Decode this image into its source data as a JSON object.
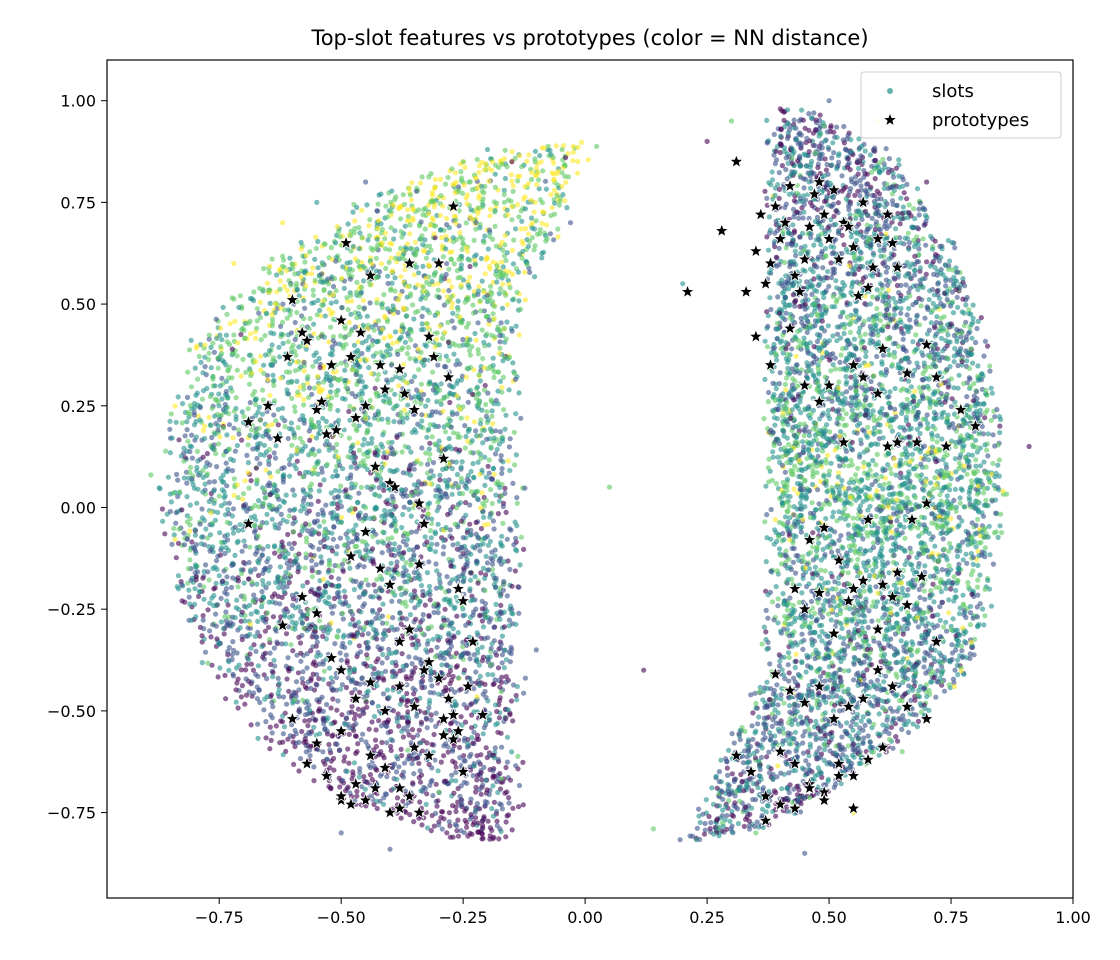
{
  "chart_data": {
    "type": "scatter",
    "title": "Top-slot features vs prototypes (color = NN distance)",
    "xlabel": "",
    "ylabel": "",
    "xlim": [
      -0.98,
      1.0
    ],
    "ylim": [
      -0.96,
      1.1
    ],
    "x_ticks": [
      -0.75,
      -0.5,
      -0.25,
      0.0,
      0.25,
      0.5,
      0.75,
      1.0
    ],
    "x_tick_labels": [
      "−0.75",
      "−0.50",
      "−0.25",
      "0.00",
      "0.25",
      "0.50",
      "0.75",
      "1.00"
    ],
    "y_ticks": [
      -0.75,
      -0.5,
      -0.25,
      0.0,
      0.25,
      0.5,
      0.75,
      1.0
    ],
    "y_tick_labels": [
      "−0.75",
      "−0.50",
      "−0.25",
      "0.00",
      "0.25",
      "0.50",
      "0.75",
      "1.00"
    ],
    "grid": false,
    "legend_position": "top-right",
    "colormap": [
      "#440154",
      "#3b528b",
      "#21918c",
      "#5ec962",
      "#fde725"
    ],
    "series": [
      {
        "name": "slots",
        "marker": "circle",
        "note_count_approx": 12000,
        "clusters": [
          {
            "center_x": -0.5,
            "center_y": 0.0,
            "x_range": [
              -0.9,
              -0.05
            ],
            "y_range": [
              -0.85,
              0.9
            ]
          },
          {
            "center_x": 0.55,
            "center_y": 0.05,
            "x_range": [
              0.15,
              0.9
            ],
            "y_range": [
              -0.85,
              1.0
            ]
          }
        ],
        "x": [
          -0.89,
          -0.85,
          -0.78,
          -0.72,
          -0.68,
          -0.62,
          -0.55,
          -0.5,
          -0.45,
          -0.4,
          -0.35,
          -0.3,
          -0.25,
          -0.2,
          -0.15,
          -0.1,
          -0.04,
          -0.03,
          0.05,
          0.12,
          0.14,
          0.2,
          0.25,
          0.28,
          0.3,
          0.35,
          0.4,
          0.45,
          0.5,
          0.55,
          0.6,
          0.65,
          0.7,
          0.75,
          0.8,
          0.85,
          0.91
        ],
        "y": [
          0.08,
          -0.01,
          0.2,
          0.6,
          -0.4,
          0.7,
          0.75,
          -0.8,
          0.8,
          -0.84,
          0.6,
          -0.7,
          0.85,
          0.88,
          0.85,
          -0.35,
          0.86,
          0.7,
          0.05,
          -0.4,
          -0.79,
          0.55,
          0.9,
          -0.7,
          0.95,
          -0.8,
          0.98,
          -0.85,
          1.0,
          -0.75,
          0.95,
          -0.6,
          0.8,
          -0.3,
          0.25,
          0.2,
          0.15
        ]
      },
      {
        "name": "prototypes",
        "marker": "star",
        "color": "#000000",
        "x": [
          -0.69,
          -0.65,
          -0.63,
          -0.61,
          -0.6,
          -0.58,
          -0.57,
          -0.55,
          -0.54,
          -0.53,
          -0.52,
          -0.51,
          -0.5,
          -0.49,
          -0.48,
          -0.47,
          -0.46,
          -0.45,
          -0.44,
          -0.43,
          -0.42,
          -0.41,
          -0.4,
          -0.39,
          -0.38,
          -0.37,
          -0.36,
          -0.35,
          -0.34,
          -0.33,
          -0.32,
          -0.31,
          -0.3,
          -0.29,
          -0.28,
          -0.27,
          -0.26,
          -0.25,
          -0.23,
          -0.21,
          -0.69,
          -0.62,
          -0.58,
          -0.55,
          -0.52,
          -0.5,
          -0.48,
          -0.45,
          -0.42,
          -0.4,
          -0.38,
          -0.36,
          -0.34,
          -0.32,
          -0.3,
          -0.28,
          -0.26,
          -0.24,
          -0.6,
          -0.55,
          -0.5,
          -0.47,
          -0.44,
          -0.41,
          -0.38,
          -0.35,
          -0.33,
          -0.29,
          -0.27,
          -0.25,
          -0.57,
          -0.53,
          -0.5,
          -0.47,
          -0.44,
          -0.41,
          -0.38,
          -0.35,
          -0.32,
          -0.29,
          -0.27,
          -0.5,
          -0.48,
          -0.45,
          -0.43,
          -0.4,
          -0.38,
          -0.36,
          -0.34,
          0.21,
          0.28,
          0.31,
          0.33,
          0.35,
          0.36,
          0.37,
          0.38,
          0.39,
          0.4,
          0.41,
          0.42,
          0.43,
          0.44,
          0.45,
          0.46,
          0.47,
          0.48,
          0.49,
          0.5,
          0.51,
          0.52,
          0.53,
          0.54,
          0.55,
          0.56,
          0.57,
          0.58,
          0.59,
          0.6,
          0.61,
          0.62,
          0.63,
          0.64,
          0.35,
          0.38,
          0.42,
          0.45,
          0.48,
          0.5,
          0.53,
          0.55,
          0.57,
          0.6,
          0.62,
          0.64,
          0.66,
          0.68,
          0.7,
          0.72,
          0.74,
          0.77,
          0.8,
          0.43,
          0.46,
          0.49,
          0.52,
          0.55,
          0.58,
          0.61,
          0.64,
          0.67,
          0.7,
          0.45,
          0.48,
          0.51,
          0.54,
          0.57,
          0.6,
          0.63,
          0.66,
          0.69,
          0.72,
          0.39,
          0.42,
          0.45,
          0.48,
          0.51,
          0.54,
          0.57,
          0.6,
          0.63,
          0.66,
          0.7,
          0.31,
          0.34,
          0.37,
          0.4,
          0.43,
          0.46,
          0.49,
          0.52,
          0.55,
          0.58,
          0.61,
          0.37,
          0.4,
          0.43,
          0.46,
          0.49,
          0.52,
          0.55,
          0.58
        ],
        "y": [
          0.21,
          0.25,
          0.17,
          0.37,
          0.51,
          0.43,
          0.41,
          0.24,
          0.26,
          0.18,
          0.35,
          0.19,
          0.46,
          0.65,
          0.37,
          0.22,
          0.43,
          0.25,
          0.57,
          0.1,
          0.35,
          0.29,
          0.06,
          0.05,
          0.34,
          0.28,
          0.6,
          0.24,
          0.01,
          -0.04,
          0.42,
          0.37,
          0.6,
          0.12,
          0.32,
          0.74,
          -0.2,
          -0.23,
          -0.33,
          -0.51,
          -0.04,
          -0.29,
          -0.22,
          -0.26,
          -0.37,
          -0.4,
          -0.12,
          -0.06,
          -0.15,
          -0.19,
          -0.33,
          -0.3,
          -0.14,
          -0.38,
          -0.42,
          -0.47,
          -0.55,
          -0.44,
          -0.52,
          -0.58,
          -0.55,
          -0.47,
          -0.43,
          -0.5,
          -0.44,
          -0.49,
          -0.4,
          -0.52,
          -0.51,
          -0.65,
          -0.63,
          -0.66,
          -0.72,
          -0.68,
          -0.61,
          -0.64,
          -0.69,
          -0.59,
          -0.61,
          -0.56,
          -0.57,
          -0.71,
          -0.73,
          -0.72,
          -0.69,
          -0.75,
          -0.74,
          -0.71,
          -0.75,
          0.53,
          0.68,
          0.85,
          0.53,
          0.63,
          0.72,
          0.55,
          0.6,
          0.74,
          0.66,
          0.7,
          0.79,
          0.57,
          0.53,
          0.61,
          0.69,
          0.77,
          0.8,
          0.72,
          0.66,
          0.78,
          0.61,
          0.7,
          0.69,
          0.64,
          0.52,
          0.75,
          0.54,
          0.59,
          0.66,
          0.39,
          0.72,
          0.65,
          0.59,
          0.42,
          0.35,
          0.44,
          0.3,
          0.26,
          0.3,
          0.16,
          0.35,
          0.32,
          0.28,
          0.15,
          0.16,
          0.33,
          0.16,
          0.4,
          0.32,
          0.15,
          0.24,
          0.2,
          -0.2,
          -0.08,
          -0.05,
          -0.13,
          -0.2,
          -0.03,
          -0.19,
          -0.16,
          -0.03,
          0.01,
          -0.25,
          -0.21,
          -0.31,
          -0.23,
          -0.18,
          -0.3,
          -0.22,
          -0.24,
          -0.17,
          -0.33,
          -0.41,
          -0.45,
          -0.48,
          -0.44,
          -0.52,
          -0.49,
          -0.47,
          -0.4,
          -0.44,
          -0.49,
          -0.52,
          -0.61,
          -0.65,
          -0.71,
          -0.6,
          -0.63,
          -0.68,
          -0.7,
          -0.63,
          -0.66,
          -0.62,
          -0.59,
          -0.77,
          -0.73,
          -0.74,
          -0.69,
          -0.72,
          -0.66,
          -0.74,
          -0.62
        ]
      }
    ]
  }
}
